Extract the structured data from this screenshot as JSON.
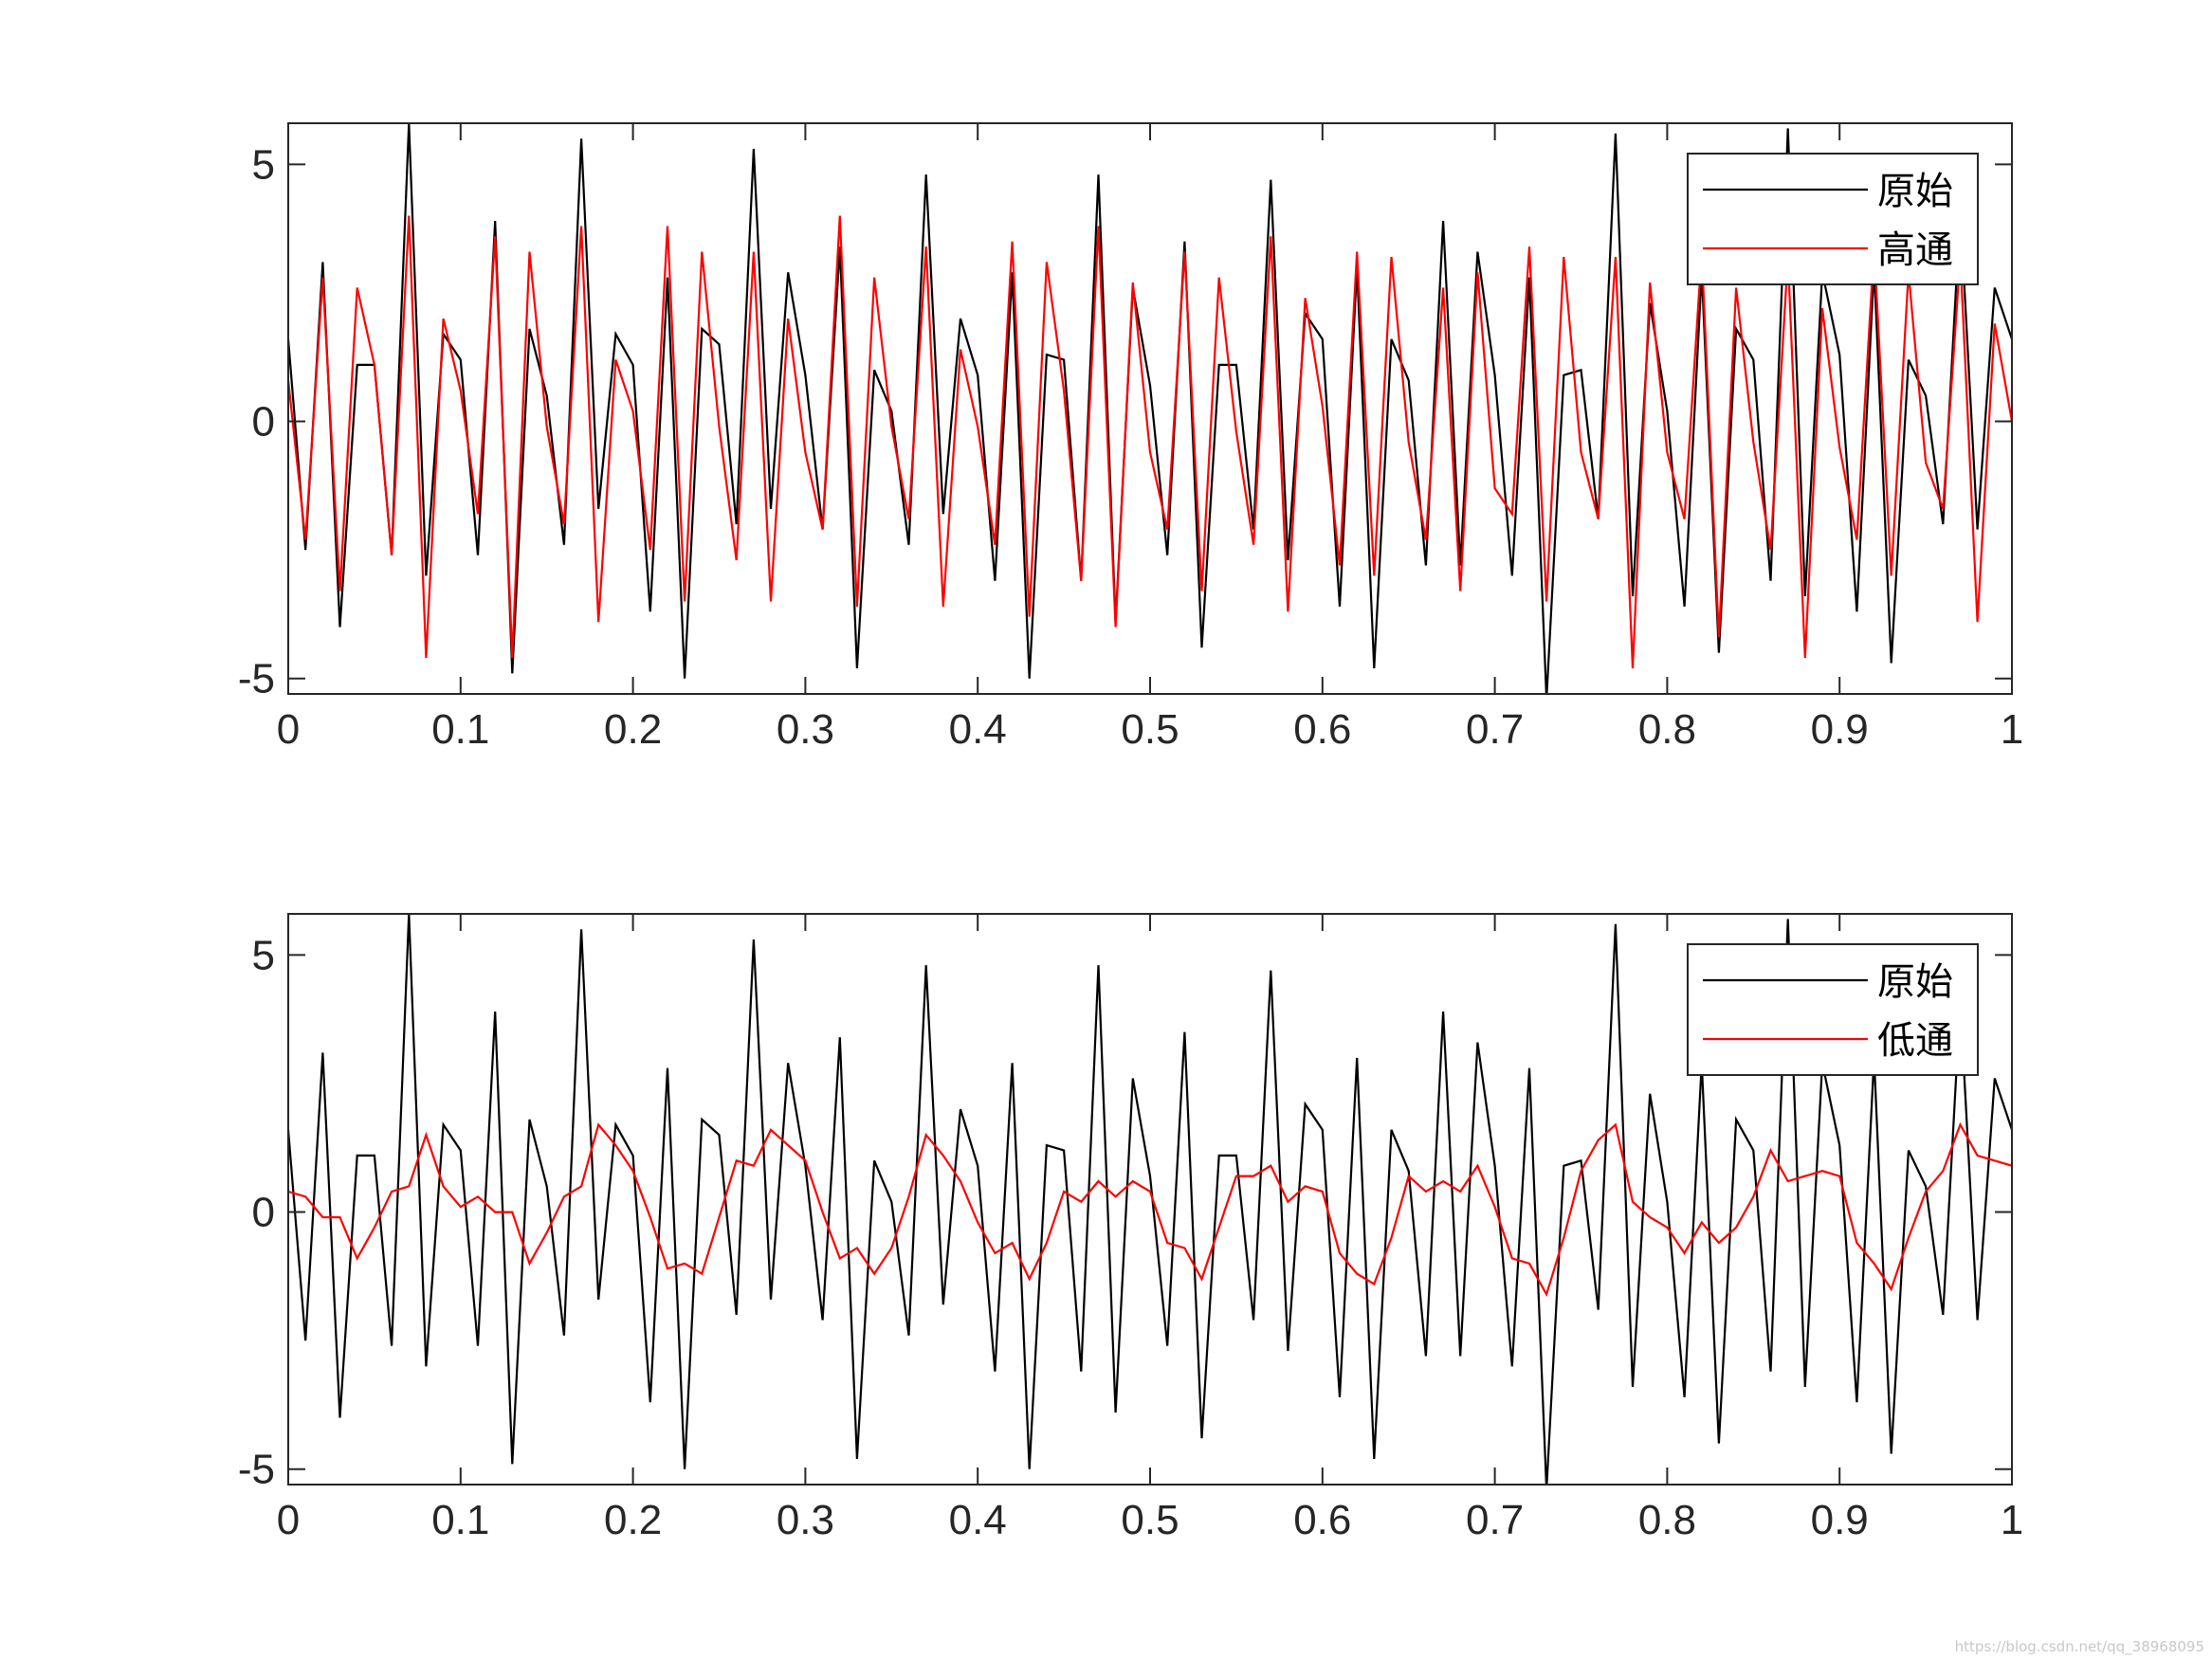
{
  "watermark": "https://blog.csdn.net/qq_38968095",
  "colors": {
    "original": "#000000",
    "filtered": "#ff0000",
    "axis": "#262626"
  },
  "chart_data": [
    {
      "type": "line",
      "title": "",
      "xlabel": "",
      "ylabel": "",
      "xlim": [
        0,
        1
      ],
      "ylim": [
        -5.3,
        5.8
      ],
      "xticks": [
        0,
        0.1,
        0.2,
        0.3,
        0.4,
        0.5,
        0.6,
        0.7,
        0.8,
        0.9,
        1
      ],
      "xtick_labels": [
        "0",
        "0.1",
        "0.2",
        "0.3",
        "0.4",
        "0.5",
        "0.6",
        "0.7",
        "0.8",
        "0.9",
        "1"
      ],
      "yticks": [
        -5,
        0,
        5
      ],
      "ytick_labels": [
        "-5",
        "0",
        "5"
      ],
      "grid": false,
      "legend_position": "top-right",
      "x": [
        0,
        0.01,
        0.02,
        0.03,
        0.04,
        0.05,
        0.06,
        0.07,
        0.08,
        0.09,
        0.1,
        0.11,
        0.12,
        0.13,
        0.14,
        0.15,
        0.16,
        0.17,
        0.18,
        0.19,
        0.2,
        0.21,
        0.22,
        0.23,
        0.24,
        0.25,
        0.26,
        0.27,
        0.28,
        0.29,
        0.3,
        0.31,
        0.32,
        0.33,
        0.34,
        0.35,
        0.36,
        0.37,
        0.38,
        0.39,
        0.4,
        0.41,
        0.42,
        0.43,
        0.44,
        0.45,
        0.46,
        0.47,
        0.48,
        0.49,
        0.5,
        0.51,
        0.52,
        0.53,
        0.54,
        0.55,
        0.56,
        0.57,
        0.58,
        0.59,
        0.6,
        0.61,
        0.62,
        0.63,
        0.64,
        0.65,
        0.66,
        0.67,
        0.68,
        0.69,
        0.7,
        0.71,
        0.72,
        0.73,
        0.74,
        0.75,
        0.76,
        0.77,
        0.78,
        0.79,
        0.8,
        0.81,
        0.82,
        0.83,
        0.84,
        0.85,
        0.86,
        0.87,
        0.88,
        0.89,
        0.9,
        0.91,
        0.92,
        0.93,
        0.94,
        0.95,
        0.96,
        0.97,
        0.98,
        0.99,
        1
      ],
      "series": [
        {
          "name": "原始",
          "color": "#000000",
          "values": [
            1.6,
            -2.5,
            3.1,
            -4.0,
            1.1,
            1.1,
            -2.6,
            5.8,
            -3.0,
            1.7,
            1.2,
            -2.6,
            3.9,
            -4.9,
            1.8,
            0.5,
            -2.4,
            5.5,
            -1.7,
            1.7,
            1.1,
            -3.7,
            2.8,
            -5.0,
            1.8,
            1.5,
            -2.0,
            5.3,
            -1.7,
            2.9,
            0.9,
            -2.1,
            3.4,
            -4.8,
            1.0,
            0.2,
            -2.4,
            4.8,
            -1.8,
            2.0,
            0.9,
            -3.1,
            2.9,
            -5.0,
            1.3,
            1.2,
            -3.1,
            4.8,
            -3.9,
            2.6,
            0.7,
            -2.6,
            3.5,
            -4.4,
            1.1,
            1.1,
            -2.1,
            4.7,
            -2.7,
            2.1,
            1.6,
            -3.6,
            3.0,
            -4.8,
            1.6,
            0.8,
            -2.8,
            3.9,
            -2.8,
            3.3,
            0.9,
            -3.0,
            2.8,
            -5.4,
            0.9,
            1.0,
            -1.9,
            5.6,
            -3.4,
            2.3,
            0.2,
            -3.6,
            2.9,
            -4.5,
            1.8,
            1.2,
            -3.1,
            5.7,
            -3.4,
            2.9,
            1.3,
            -3.7,
            3.0,
            -4.7,
            1.2,
            0.5,
            -2.0,
            4.1,
            -2.1,
            2.6,
            1.6
          ]
        },
        {
          "name": "高通",
          "color": "#ff0000",
          "values": [
            0.8,
            -2.3,
            2.8,
            -3.3,
            2.6,
            1.1,
            -2.6,
            4.0,
            -4.6,
            2.0,
            0.6,
            -1.8,
            3.6,
            -4.6,
            3.3,
            -0.1,
            -2.0,
            3.8,
            -3.9,
            1.2,
            0.2,
            -2.5,
            3.8,
            -3.5,
            3.3,
            -0.1,
            -2.7,
            3.3,
            -3.5,
            2.0,
            -0.6,
            -2.1,
            4.0,
            -3.6,
            2.8,
            -0.1,
            -1.9,
            3.4,
            -3.6,
            1.4,
            -0.1,
            -2.4,
            3.5,
            -3.8,
            3.1,
            0.6,
            -3.1,
            3.8,
            -4.0,
            2.7,
            -0.6,
            -2.1,
            3.3,
            -3.3,
            2.8,
            -0.2,
            -2.4,
            3.6,
            -3.7,
            2.4,
            0.3,
            -2.8,
            3.3,
            -3.0,
            3.2,
            -0.4,
            -2.3,
            2.6,
            -3.3,
            2.9,
            -1.3,
            -1.8,
            3.4,
            -3.5,
            3.2,
            -0.6,
            -1.9,
            3.2,
            -4.8,
            2.7,
            -0.6,
            -1.9,
            3.3,
            -4.2,
            2.6,
            -0.4,
            -2.5,
            3.2,
            -4.6,
            2.2,
            -0.5,
            -2.3,
            3.4,
            -3.0,
            2.9,
            -0.8,
            -1.7,
            3.2,
            -3.9,
            1.9,
            0.0
          ]
        }
      ]
    },
    {
      "type": "line",
      "title": "",
      "xlabel": "",
      "ylabel": "",
      "xlim": [
        0,
        1
      ],
      "ylim": [
        -5.3,
        5.8
      ],
      "xticks": [
        0,
        0.1,
        0.2,
        0.3,
        0.4,
        0.5,
        0.6,
        0.7,
        0.8,
        0.9,
        1
      ],
      "xtick_labels": [
        "0",
        "0.1",
        "0.2",
        "0.3",
        "0.4",
        "0.5",
        "0.6",
        "0.7",
        "0.8",
        "0.9",
        "1"
      ],
      "yticks": [
        -5,
        0,
        5
      ],
      "ytick_labels": [
        "-5",
        "0",
        "5"
      ],
      "grid": false,
      "legend_position": "top-right",
      "x": [
        0,
        0.01,
        0.02,
        0.03,
        0.04,
        0.05,
        0.06,
        0.07,
        0.08,
        0.09,
        0.1,
        0.11,
        0.12,
        0.13,
        0.14,
        0.15,
        0.16,
        0.17,
        0.18,
        0.19,
        0.2,
        0.21,
        0.22,
        0.23,
        0.24,
        0.25,
        0.26,
        0.27,
        0.28,
        0.29,
        0.3,
        0.31,
        0.32,
        0.33,
        0.34,
        0.35,
        0.36,
        0.37,
        0.38,
        0.39,
        0.4,
        0.41,
        0.42,
        0.43,
        0.44,
        0.45,
        0.46,
        0.47,
        0.48,
        0.49,
        0.5,
        0.51,
        0.52,
        0.53,
        0.54,
        0.55,
        0.56,
        0.57,
        0.58,
        0.59,
        0.6,
        0.61,
        0.62,
        0.63,
        0.64,
        0.65,
        0.66,
        0.67,
        0.68,
        0.69,
        0.7,
        0.71,
        0.72,
        0.73,
        0.74,
        0.75,
        0.76,
        0.77,
        0.78,
        0.79,
        0.8,
        0.81,
        0.82,
        0.83,
        0.84,
        0.85,
        0.86,
        0.87,
        0.88,
        0.89,
        0.9,
        0.91,
        0.92,
        0.93,
        0.94,
        0.95,
        0.96,
        0.97,
        0.98,
        0.99,
        1
      ],
      "series": [
        {
          "name": "原始",
          "color": "#000000",
          "values": [
            1.6,
            -2.5,
            3.1,
            -4.0,
            1.1,
            1.1,
            -2.6,
            5.8,
            -3.0,
            1.7,
            1.2,
            -2.6,
            3.9,
            -4.9,
            1.8,
            0.5,
            -2.4,
            5.5,
            -1.7,
            1.7,
            1.1,
            -3.7,
            2.8,
            -5.0,
            1.8,
            1.5,
            -2.0,
            5.3,
            -1.7,
            2.9,
            0.9,
            -2.1,
            3.4,
            -4.8,
            1.0,
            0.2,
            -2.4,
            4.8,
            -1.8,
            2.0,
            0.9,
            -3.1,
            2.9,
            -5.0,
            1.3,
            1.2,
            -3.1,
            4.8,
            -3.9,
            2.6,
            0.7,
            -2.6,
            3.5,
            -4.4,
            1.1,
            1.1,
            -2.1,
            4.7,
            -2.7,
            2.1,
            1.6,
            -3.6,
            3.0,
            -4.8,
            1.6,
            0.8,
            -2.8,
            3.9,
            -2.8,
            3.3,
            0.9,
            -3.0,
            2.8,
            -5.4,
            0.9,
            1.0,
            -1.9,
            5.6,
            -3.4,
            2.3,
            0.2,
            -3.6,
            2.9,
            -4.5,
            1.8,
            1.2,
            -3.1,
            5.7,
            -3.4,
            2.9,
            1.3,
            -3.7,
            3.0,
            -4.7,
            1.2,
            0.5,
            -2.0,
            4.1,
            -2.1,
            2.6,
            1.6
          ]
        },
        {
          "name": "低通",
          "color": "#ff0000",
          "values": [
            0.4,
            0.3,
            -0.1,
            -0.1,
            -0.9,
            -0.3,
            0.4,
            0.5,
            1.5,
            0.5,
            0.1,
            0.3,
            0.0,
            0.0,
            -1.0,
            -0.4,
            0.3,
            0.5,
            1.7,
            1.3,
            0.8,
            -0.1,
            -1.1,
            -1.0,
            -1.2,
            -0.1,
            1.0,
            0.9,
            1.6,
            1.3,
            1.0,
            0.0,
            -0.9,
            -0.7,
            -1.2,
            -0.7,
            0.3,
            1.5,
            1.1,
            0.6,
            -0.2,
            -0.8,
            -0.6,
            -1.3,
            -0.6,
            0.4,
            0.2,
            0.6,
            0.3,
            0.6,
            0.4,
            -0.6,
            -0.7,
            -1.3,
            -0.3,
            0.7,
            0.7,
            0.9,
            0.2,
            0.5,
            0.4,
            -0.8,
            -1.2,
            -1.4,
            -0.5,
            0.7,
            0.4,
            0.6,
            0.4,
            0.9,
            0.1,
            -0.9,
            -1.0,
            -1.6,
            -0.5,
            0.8,
            1.4,
            1.7,
            0.2,
            -0.1,
            -0.3,
            -0.8,
            -0.2,
            -0.6,
            -0.3,
            0.3,
            1.2,
            0.6,
            0.7,
            0.8,
            0.7,
            -0.6,
            -1.0,
            -1.5,
            -0.5,
            0.4,
            0.8,
            1.7,
            1.1,
            1.0,
            0.9
          ]
        }
      ]
    }
  ]
}
